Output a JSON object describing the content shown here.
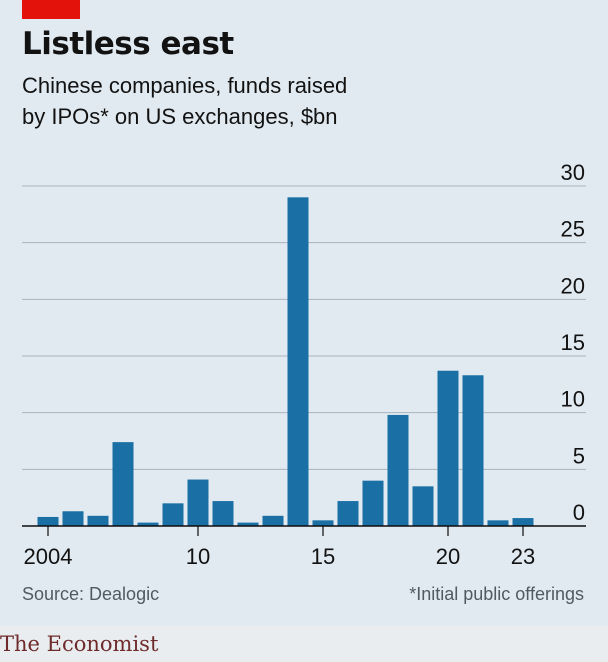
{
  "header": {
    "title": "Listless east",
    "subtitle_line1": "Chinese companies, funds raised",
    "subtitle_line2": "by IPOs* on US exchanges, $bn"
  },
  "footer": {
    "source": "Source: Dealogic",
    "note": "*Initial public offerings",
    "brand": "The Economist"
  },
  "colors": {
    "bar": "#1a6fa5",
    "gridline": "#a7b4bd",
    "baseline": "#0d0d0d",
    "accent": "#e3120b"
  },
  "chart_data": {
    "type": "bar",
    "title": "Listless east",
    "subtitle": "Chinese companies, funds raised by IPOs* on US exchanges, $bn",
    "xlabel": "",
    "ylabel": "",
    "categories": [
      2004,
      2005,
      2006,
      2007,
      2008,
      2009,
      2010,
      2011,
      2012,
      2013,
      2014,
      2015,
      2016,
      2017,
      2018,
      2019,
      2020,
      2021,
      2022,
      2023
    ],
    "x_tick_labels": [
      {
        "year": 2004,
        "label": "2004"
      },
      {
        "year": 2010,
        "label": "10"
      },
      {
        "year": 2015,
        "label": "15"
      },
      {
        "year": 2020,
        "label": "20"
      },
      {
        "year": 2023,
        "label": "23"
      }
    ],
    "values": [
      0.8,
      1.3,
      0.9,
      7.4,
      0.3,
      2.0,
      4.1,
      2.2,
      0.3,
      0.9,
      29.0,
      0.5,
      2.2,
      4.0,
      9.8,
      3.5,
      13.7,
      13.3,
      0.5,
      0.7
    ],
    "ylim": [
      0,
      30
    ],
    "y_ticks": [
      0,
      5,
      10,
      15,
      20,
      25,
      30
    ],
    "y_axis_side": "right",
    "grid": true
  }
}
